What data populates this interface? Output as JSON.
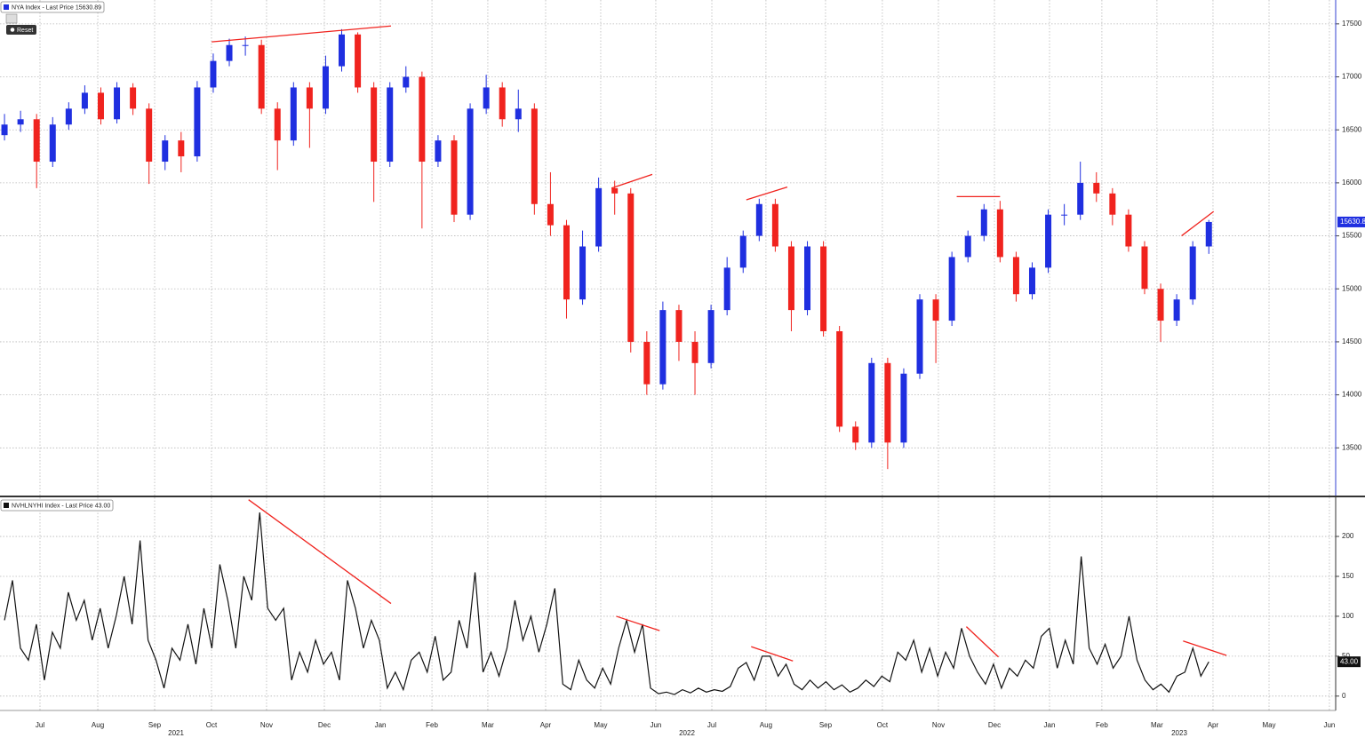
{
  "chart_data": [
    {
      "type": "candlestick",
      "title": "NYA Index - Last Price 15630.89",
      "button": "Reset",
      "up_color": "#1f2fe0",
      "down_color": "#f0231e",
      "trend_color": "#f0231e",
      "ylim": [
        13050,
        17725
      ],
      "yticks": [
        13500,
        14000,
        14500,
        15000,
        15500,
        16000,
        16500,
        17000,
        17500
      ],
      "xlim": [
        -0.28,
        82.9
      ],
      "open": [
        16450,
        16550,
        16600,
        16200,
        16550,
        16700,
        16850,
        16600,
        16900,
        16700,
        16200,
        16400,
        16250,
        16900,
        17150,
        17300,
        17300,
        16700,
        16400,
        16900,
        16700,
        17100,
        17400,
        16900,
        16200,
        16900,
        17000,
        16200,
        16400,
        15700,
        16700,
        16900,
        16600,
        16700,
        15800,
        15600,
        14900,
        15400,
        15950,
        15900,
        14500,
        14100,
        14800,
        14500,
        14300,
        14800,
        15200,
        15500,
        15800,
        15400,
        14800,
        15400,
        14600,
        13700,
        13550,
        14300,
        13550,
        14200,
        14900,
        14700,
        15300,
        15500,
        15750,
        15300,
        14950,
        15200,
        15700,
        15700,
        16000,
        15900,
        15700,
        15400,
        15000,
        14700,
        14900,
        15400
      ],
      "high": [
        16650,
        16680,
        16650,
        16620,
        16760,
        16920,
        16900,
        16950,
        16940,
        16750,
        16450,
        16480,
        16960,
        17220,
        17360,
        17380,
        17350,
        16760,
        16950,
        16950,
        17200,
        17450,
        17420,
        16950,
        16950,
        17100,
        17050,
        16450,
        16450,
        16750,
        17020,
        16950,
        16880,
        16750,
        16100,
        15650,
        15550,
        16050,
        16020,
        15950,
        14600,
        14880,
        14850,
        14600,
        14850,
        15300,
        15550,
        15850,
        15850,
        15450,
        15450,
        15450,
        14650,
        13750,
        14350,
        14350,
        14250,
        14950,
        14950,
        15350,
        15550,
        15800,
        15830,
        15350,
        15250,
        15750,
        15800,
        16200,
        16100,
        15950,
        15750,
        15450,
        15050,
        14950,
        15450,
        15650
      ],
      "low": [
        16400,
        16480,
        15950,
        16150,
        16500,
        16650,
        16550,
        16560,
        16640,
        15990,
        16120,
        16100,
        16200,
        16850,
        17100,
        17200,
        16650,
        16120,
        16350,
        16330,
        16650,
        17050,
        16850,
        15820,
        16150,
        16850,
        15570,
        16150,
        15630,
        15650,
        16650,
        16530,
        16480,
        15700,
        15500,
        14720,
        14850,
        15350,
        15700,
        14400,
        14000,
        14050,
        14320,
        14000,
        14250,
        14750,
        15150,
        15450,
        15350,
        14600,
        14750,
        14550,
        13650,
        13480,
        13500,
        13300,
        13500,
        14150,
        14300,
        14650,
        15250,
        15450,
        15250,
        14880,
        14900,
        15150,
        15600,
        15650,
        15820,
        15600,
        15350,
        14950,
        14500,
        14650,
        14850,
        15330
      ],
      "close": [
        16550,
        16600,
        16200,
        16550,
        16700,
        16850,
        16600,
        16900,
        16700,
        16200,
        16400,
        16250,
        16900,
        17150,
        17300,
        17300,
        16700,
        16400,
        16900,
        16700,
        17100,
        17400,
        16900,
        16200,
        16900,
        17000,
        16200,
        16400,
        15700,
        16700,
        16900,
        16600,
        16700,
        15800,
        15600,
        14900,
        15400,
        15950,
        15900,
        14500,
        14100,
        14800,
        14500,
        14300,
        14800,
        15200,
        15500,
        15800,
        15400,
        14800,
        15400,
        14600,
        13700,
        13550,
        14300,
        13550,
        14200,
        14900,
        14700,
        15300,
        15500,
        15750,
        15300,
        14950,
        15200,
        15700,
        15700,
        16000,
        15900,
        15700,
        15400,
        15000,
        14700,
        14900,
        15400,
        15630.89
      ],
      "trendlines": [
        {
          "x": [
            12.9,
            24.07
          ],
          "y": [
            17330,
            17480
          ]
        },
        {
          "x": [
            37.8,
            40.34
          ],
          "y": [
            15950,
            16080
          ]
        },
        {
          "x": [
            46.2,
            48.75
          ],
          "y": [
            15840,
            15960
          ]
        },
        {
          "x": [
            59.3,
            62.0
          ],
          "y": [
            15870,
            15870
          ]
        },
        {
          "x": [
            73.3,
            75.3
          ],
          "y": [
            15500,
            15730
          ]
        }
      ]
    },
    {
      "type": "line",
      "title": "NVHLNYHI Index - Last Price 43.00",
      "color": "#111111",
      "trend_color": "#f0231e",
      "last_value_label": "43.00",
      "ylim": [
        -18,
        249
      ],
      "yticks": [
        0,
        50,
        100,
        150,
        200
      ],
      "xlim": [
        -0.28,
        82.9
      ],
      "values": [
        95,
        145,
        60,
        45,
        90,
        20,
        80,
        60,
        130,
        95,
        120,
        70,
        110,
        60,
        100,
        150,
        90,
        195,
        70,
        45,
        10,
        60,
        45,
        90,
        40,
        110,
        60,
        165,
        120,
        60,
        150,
        120,
        230,
        110,
        95,
        110,
        20,
        55,
        30,
        70,
        40,
        55,
        20,
        145,
        110,
        60,
        95,
        70,
        10,
        30,
        8,
        45,
        55,
        30,
        75,
        20,
        30,
        95,
        60,
        155,
        30,
        55,
        25,
        60,
        120,
        70,
        100,
        55,
        90,
        135,
        15,
        8,
        45,
        20,
        10,
        35,
        15,
        60,
        95,
        55,
        90,
        10,
        3,
        5,
        2,
        8,
        4,
        10,
        5,
        8,
        6,
        12,
        35,
        42,
        20,
        50,
        50,
        25,
        40,
        15,
        8,
        20,
        10,
        18,
        8,
        14,
        5,
        10,
        20,
        12,
        25,
        18,
        55,
        45,
        70,
        30,
        60,
        25,
        55,
        35,
        85,
        50,
        30,
        15,
        40,
        10,
        35,
        25,
        45,
        35,
        75,
        85,
        35,
        70,
        40,
        175,
        60,
        40,
        65,
        35,
        50,
        100,
        45,
        20,
        8,
        15,
        5,
        25,
        30,
        60,
        25,
        43
      ],
      "xticks": [
        {
          "value": 2.21,
          "label": "Jul"
        },
        {
          "value": 5.81,
          "label": "Aug"
        },
        {
          "value": 9.35,
          "label": "Sep"
        },
        {
          "value": 12.89,
          "label": "Oct"
        },
        {
          "value": 16.32,
          "label": "Nov"
        },
        {
          "value": 19.92,
          "label": "Dec"
        },
        {
          "value": 23.41,
          "label": "Jan"
        },
        {
          "value": 26.62,
          "label": "Feb"
        },
        {
          "value": 30.1,
          "label": "Mar"
        },
        {
          "value": 33.7,
          "label": "Apr"
        },
        {
          "value": 37.13,
          "label": "May"
        },
        {
          "value": 40.56,
          "label": "Jun"
        },
        {
          "value": 44.05,
          "label": "Jul"
        },
        {
          "value": 47.42,
          "label": "Aug"
        },
        {
          "value": 51.13,
          "label": "Sep"
        },
        {
          "value": 54.67,
          "label": "Oct"
        },
        {
          "value": 58.16,
          "label": "Nov"
        },
        {
          "value": 61.65,
          "label": "Dec"
        },
        {
          "value": 65.08,
          "label": "Jan"
        },
        {
          "value": 68.34,
          "label": "Feb"
        },
        {
          "value": 71.77,
          "label": "Mar"
        },
        {
          "value": 75.26,
          "label": "Apr"
        },
        {
          "value": 78.75,
          "label": "May"
        },
        {
          "value": 82.51,
          "label": "Jun"
        }
      ],
      "year_ticks": [
        {
          "value": 10.68,
          "label": "2021"
        },
        {
          "value": 42.5,
          "label": "2022"
        },
        {
          "value": 73.16,
          "label": "2023"
        }
      ],
      "trendlines": [
        {
          "x": [
            15.2,
            24.07
          ],
          "y": [
            246,
            116
          ]
        },
        {
          "x": [
            38.1,
            40.8
          ],
          "y": [
            100,
            82
          ]
        },
        {
          "x": [
            46.5,
            49.1
          ],
          "y": [
            62,
            44
          ]
        },
        {
          "x": [
            59.9,
            61.9
          ],
          "y": [
            87,
            49
          ]
        },
        {
          "x": [
            73.4,
            76.1
          ],
          "y": [
            69,
            51
          ]
        }
      ]
    }
  ]
}
